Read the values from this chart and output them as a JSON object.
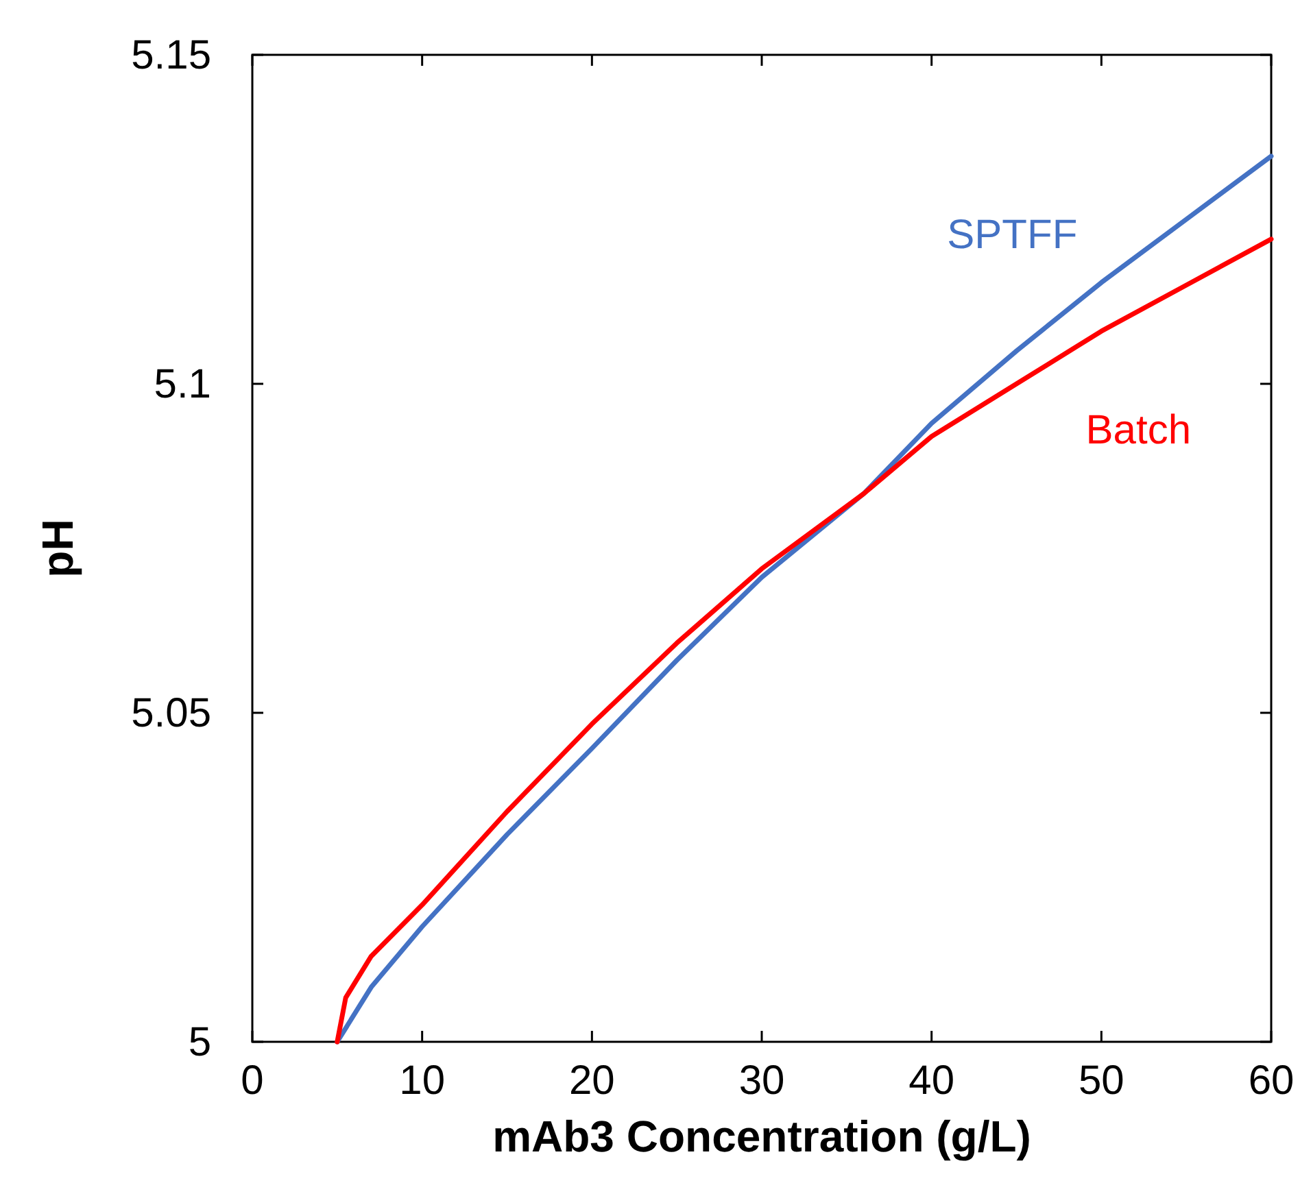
{
  "chart_data": {
    "type": "line",
    "xlabel": "mAb3 Concentration (g/L)",
    "ylabel": "pH",
    "xlim": [
      0,
      60
    ],
    "ylim": [
      5,
      5.15
    ],
    "xticks": [
      0,
      10,
      20,
      30,
      40,
      50,
      60
    ],
    "yticks": [
      5,
      5.05,
      5.1,
      5.15
    ],
    "grid": false,
    "marker": "none",
    "line_style": "solid",
    "series": [
      {
        "name": "SPTFF",
        "color": "#4472c4",
        "x": [
          5,
          7,
          10,
          15,
          20,
          25,
          30,
          36,
          40,
          45,
          50,
          55,
          60
        ],
        "values": [
          5.0,
          5.0083,
          5.0175,
          5.0315,
          5.0446,
          5.058,
          5.0706,
          5.0833,
          5.094,
          5.105,
          5.1154,
          5.125,
          5.1346
        ]
      },
      {
        "name": "Batch",
        "color": "#ff0000",
        "x": [
          5,
          5.5,
          7,
          10,
          15,
          20,
          25,
          30,
          36,
          40,
          45,
          50,
          55,
          60
        ],
        "values": [
          5.0,
          5.0067,
          5.013,
          5.0208,
          5.035,
          5.0483,
          5.0606,
          5.0719,
          5.0833,
          5.092,
          5.1,
          5.108,
          5.115,
          5.122
        ]
      }
    ]
  }
}
